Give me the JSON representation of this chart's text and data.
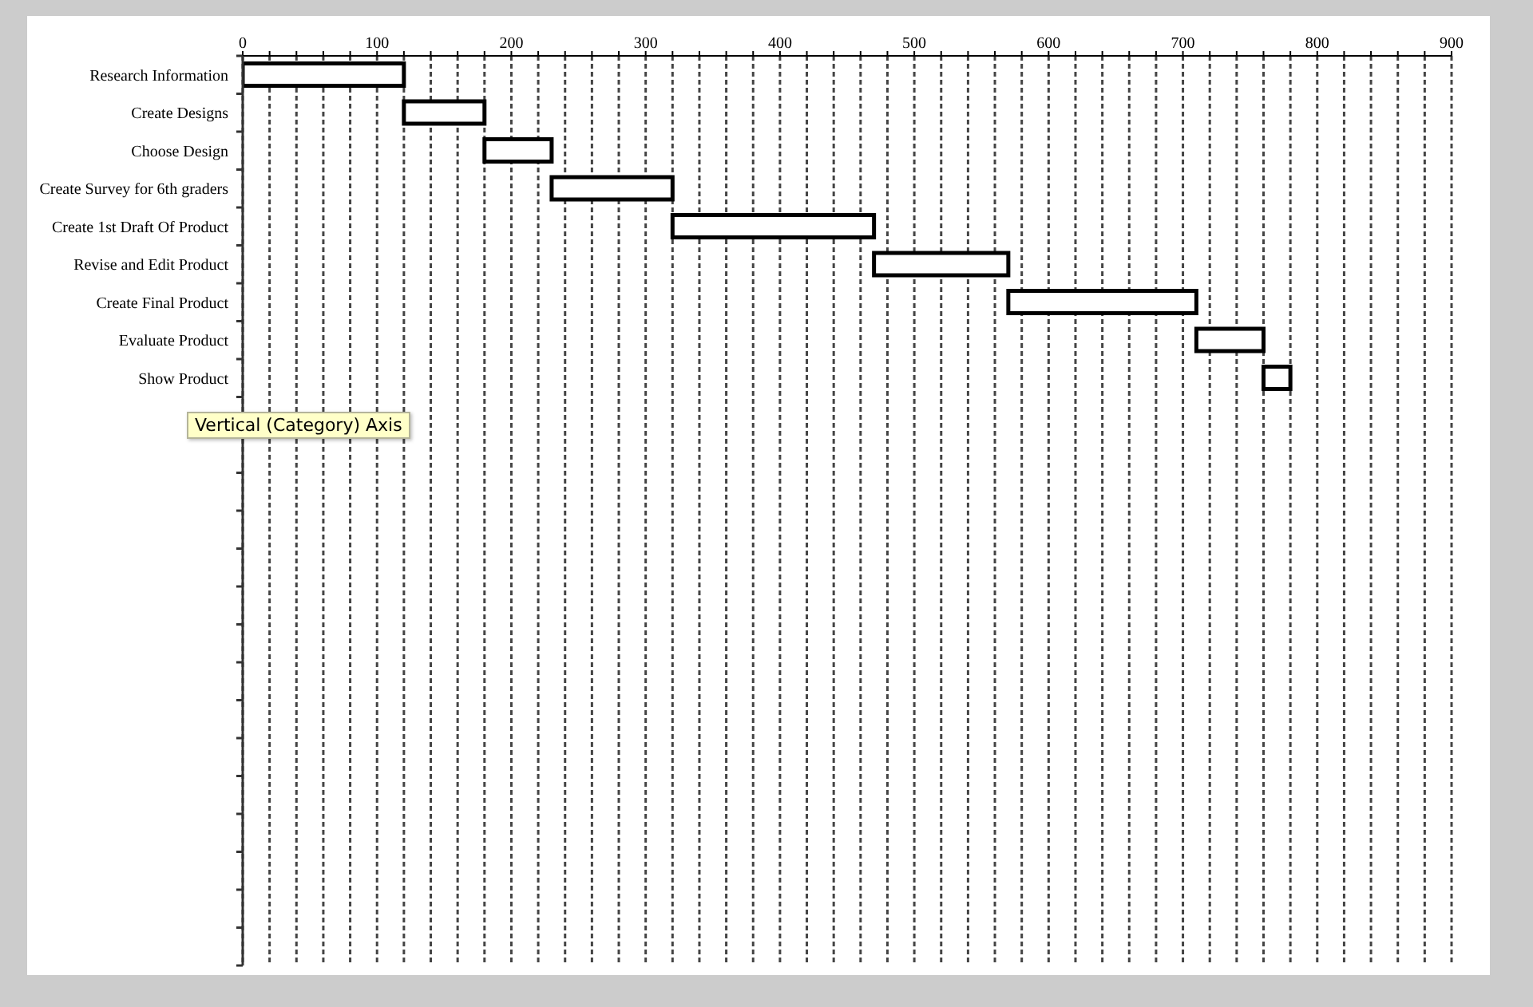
{
  "chart_data": {
    "type": "bar",
    "orientation": "horizontal",
    "categories": [
      "Research Information",
      "Create Designs",
      "Choose Design",
      "Create Survey for 6th graders",
      "Create 1st Draft Of Product",
      "Revise and Edit Product",
      "Create Final Product",
      "Evaluate Product",
      "Show Product",
      null,
      null,
      null,
      null,
      null,
      null,
      null,
      null,
      null,
      null,
      null,
      null,
      null,
      null,
      null
    ],
    "base": [
      0,
      120,
      180,
      230,
      320,
      470,
      570,
      710,
      760,
      null,
      null,
      null,
      null,
      null,
      null,
      null,
      null,
      null,
      null,
      null,
      null,
      null,
      null,
      null
    ],
    "values": [
      120,
      60,
      50,
      90,
      150,
      100,
      140,
      50,
      20,
      null,
      null,
      null,
      null,
      null,
      null,
      null,
      null,
      null,
      null,
      null,
      null,
      null,
      null,
      null
    ],
    "color": "#ffffff",
    "xlim": [
      0,
      900
    ],
    "xticks": [
      0,
      {
        "value": 20,
        "label": null
      },
      {
        "value": 40,
        "label": null
      },
      {
        "value": 60,
        "label": null
      },
      {
        "value": 80,
        "label": null
      },
      100,
      {
        "value": 120,
        "label": null
      },
      {
        "value": 140,
        "label": null
      },
      {
        "value": 160,
        "label": null
      },
      {
        "value": 180,
        "label": null
      },
      200,
      {
        "value": 220,
        "label": null
      },
      {
        "value": 240,
        "label": null
      },
      {
        "value": 260,
        "label": null
      },
      {
        "value": 280,
        "label": null
      },
      300,
      {
        "value": 320,
        "label": null
      },
      {
        "value": 340,
        "label": null
      },
      {
        "value": 360,
        "label": null
      },
      {
        "value": 380,
        "label": null
      },
      400,
      {
        "value": 420,
        "label": null
      },
      {
        "value": 440,
        "label": null
      },
      {
        "value": 460,
        "label": null
      },
      {
        "value": 480,
        "label": null
      },
      500,
      {
        "value": 520,
        "label": null
      },
      {
        "value": 540,
        "label": null
      },
      {
        "value": 560,
        "label": null
      },
      {
        "value": 580,
        "label": null
      },
      600,
      {
        "value": 620,
        "label": null
      },
      {
        "value": 640,
        "label": null
      },
      {
        "value": 660,
        "label": null
      },
      {
        "value": 680,
        "label": null
      },
      700,
      {
        "value": 720,
        "label": null
      },
      {
        "value": 740,
        "label": null
      },
      {
        "value": 760,
        "label": null
      },
      {
        "value": 780,
        "label": null
      },
      800,
      {
        "value": 820,
        "label": null
      },
      {
        "value": 840,
        "label": null
      },
      {
        "value": 860,
        "label": null
      },
      {
        "value": 880,
        "label": null
      },
      900
    ],
    "grid": "x",
    "annotations": [
      "Vertical (Category) Axis"
    ]
  }
}
